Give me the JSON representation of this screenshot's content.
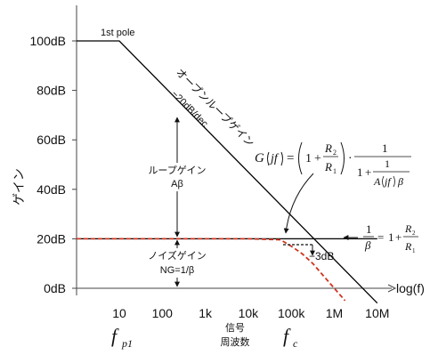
{
  "chart_data": {
    "type": "line",
    "title": "",
    "xlabel": "log(f)",
    "ylabel": "ゲイン",
    "x_scale": "log",
    "x_ticks": [
      "10",
      "100",
      "1k",
      "10k",
      "100k",
      "1M",
      "10M"
    ],
    "x_tick_values": [
      10,
      100,
      1000,
      10000,
      100000,
      1000000,
      10000000
    ],
    "y_ticks": [
      "100dB",
      "80dB",
      "60dB",
      "40dB",
      "20dB",
      "0dB"
    ],
    "y_tick_values": [
      100,
      80,
      60,
      40,
      20,
      0
    ],
    "xlim": [
      1,
      50000000
    ],
    "ylim": [
      -12,
      112
    ],
    "series": [
      {
        "name": "オープンループゲイン",
        "style": "solid-black",
        "x": [
          1,
          10,
          10000000
        ],
        "y": [
          100,
          100,
          -6
        ]
      },
      {
        "name": "G(jf)",
        "style": "dashed-red",
        "x": [
          1,
          10000,
          56234,
          100000,
          177828,
          316228,
          562341,
          1000000,
          1778279
        ],
        "y": [
          20,
          20,
          19.6,
          17,
          14,
          10,
          5,
          0,
          -5
        ]
      },
      {
        "name": "1/β",
        "style": "solid-black",
        "x": [
          1,
          10000000
        ],
        "y": [
          20,
          20
        ]
      }
    ],
    "annotations": {
      "first_pole": "1st pole",
      "open_loop_label": "オープンループゲイン",
      "slope_label": "−20dB/dec",
      "loop_gain_label_1": "ループゲイン",
      "loop_gain_label_2": "Aβ",
      "noise_gain_label_1": "ノイズゲイン",
      "noise_gain_label_2": "NG=1/β",
      "minus3db": "−3dB",
      "signal_freq_1": "信号",
      "signal_freq_2": "周波数",
      "fp1_main": "f",
      "fp1_sub": "p1",
      "fc_main": "f",
      "fc_sub": "c",
      "g_formula": {
        "lhs_G": "G",
        "lhs_arg": "jf",
        "eq": "=",
        "one": "1",
        "plus": "+",
        "R2": "R",
        "R2_sub": "2",
        "R1": "R",
        "R1_sub": "1",
        "dot": "·",
        "A": "A",
        "beta": "β"
      },
      "beta_formula": {
        "one": "1",
        "beta": "β",
        "eq": "=",
        "plus": "+",
        "R": "R",
        "sub2": "2",
        "sub1": "1"
      }
    },
    "grid": false,
    "legend": "none",
    "colors": {
      "axis": "#333333",
      "curve": "#000000",
      "closed_loop": "#d0331f"
    }
  }
}
